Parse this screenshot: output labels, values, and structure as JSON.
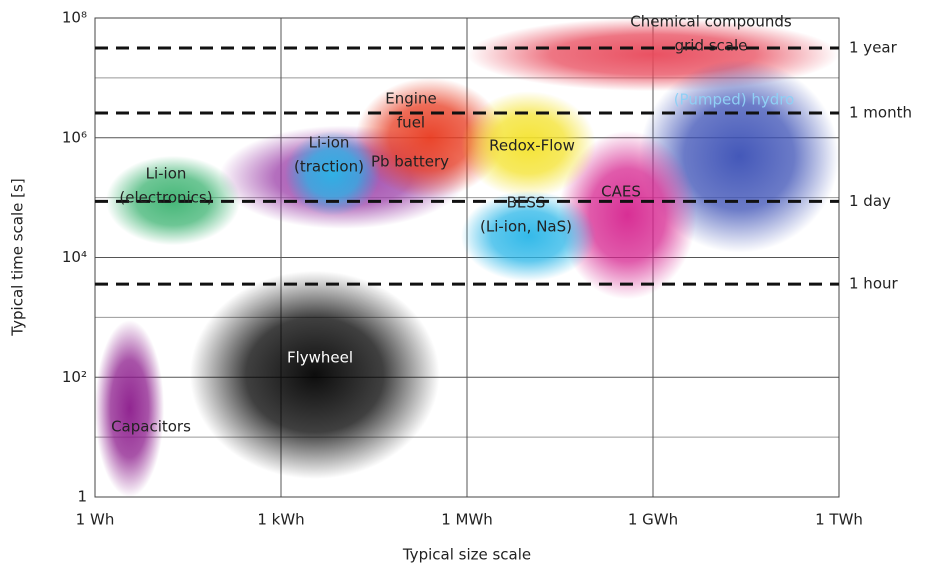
{
  "chart_data": {
    "type": "region",
    "x_label": "Typical size scale",
    "y_label": "Typical time scale [s]",
    "log_x": true,
    "log_y": true,
    "grid": true,
    "xlim": [
      1,
      1000000000000
    ],
    "xticks": [
      {
        "value": 1,
        "label": "1 Wh"
      },
      {
        "value": 1000,
        "label": "1 kWh"
      },
      {
        "value": 1000000,
        "label": "1 MWh"
      },
      {
        "value": 1000000000,
        "label": "1 GWh"
      },
      {
        "value": 1000000000000,
        "label": "1 TWh"
      }
    ],
    "ylim": [
      1,
      100000000
    ],
    "yticks": [
      {
        "value": 1,
        "label": "1"
      },
      {
        "value": 100,
        "label": "10²"
      },
      {
        "value": 10000,
        "label": "10⁴"
      },
      {
        "value": 1000000,
        "label": "10⁶"
      },
      {
        "value": 100000000,
        "label": "10⁸"
      }
    ],
    "y_minor_ticks": [
      10,
      1000,
      100000,
      10000000
    ],
    "reference_lines": [
      {
        "value": 3600,
        "label": "1 hour"
      },
      {
        "value": 86400,
        "label": "1 day"
      },
      {
        "value": 2592000,
        "label": "1 month"
      },
      {
        "value": 31536000,
        "label": "1 year"
      }
    ],
    "regions": [
      {
        "name": [
          "Chemical compounds",
          "grid scale"
        ],
        "color": "#e8485a",
        "label_color": "#222222",
        "x_range": [
          1000000,
          1000000000000
        ],
        "y_range": [
          6000000,
          100000000
        ]
      },
      {
        "name": [
          "(Pumped) hydro"
        ],
        "color": "#3a4fb5",
        "label_color": "#8fd0f5",
        "x_range": [
          600000000,
          1000000000000
        ],
        "y_range": [
          12000,
          20000000
        ]
      },
      {
        "name": [
          "CAES"
        ],
        "color": "#d6248f",
        "label_color": "#222222",
        "x_range": [
          30000000,
          5000000000
        ],
        "y_range": [
          2000,
          1300000
        ]
      },
      {
        "name": [
          "Pb battery"
        ],
        "color": "#9b3fa8",
        "label_color": "#222222",
        "x_range": [
          100,
          1000000
        ],
        "y_range": [
          30000,
          1600000
        ]
      },
      {
        "name": [
          "Engine",
          "fuel"
        ],
        "color": "#e83a1f",
        "label_color": "#222222",
        "x_range": [
          16000,
          4000000
        ],
        "y_range": [
          100000,
          10000000
        ]
      },
      {
        "name": [
          "Redox-Flow"
        ],
        "color": "#f4e22a",
        "label_color": "#222222",
        "x_range": [
          800000,
          120000000
        ],
        "y_range": [
          100000,
          6000000
        ]
      },
      {
        "name": [
          "BESS",
          "(Li-ion, NaS)"
        ],
        "color": "#29b6e8",
        "label_color": "#222222",
        "x_range": [
          800000,
          120000000
        ],
        "y_range": [
          4000,
          130000
        ]
      },
      {
        "name": [
          "Li-ion",
          "(traction)"
        ],
        "color": "#29b6e8",
        "label_color": "#222222",
        "x_range": [
          1150,
          40000
        ],
        "y_range": [
          50000,
          1300000
        ]
      },
      {
        "name": [
          "Li-ion",
          "(electronics)"
        ],
        "color": "#3cb371",
        "label_color": "#222222",
        "x_range": [
          1.5,
          220
        ],
        "y_range": [
          16000,
          500000
        ]
      },
      {
        "name": [
          "Flywheel"
        ],
        "color": "#000000",
        "label_color": "#ffffff",
        "x_range": [
          34,
          360000
        ],
        "y_range": [
          2,
          6000
        ]
      },
      {
        "name": [
          "Capacitors"
        ],
        "color": "#8b1a8b",
        "label_color": "#222222",
        "x_range": [
          1,
          13
        ],
        "y_range": [
          1,
          900
        ]
      }
    ]
  }
}
